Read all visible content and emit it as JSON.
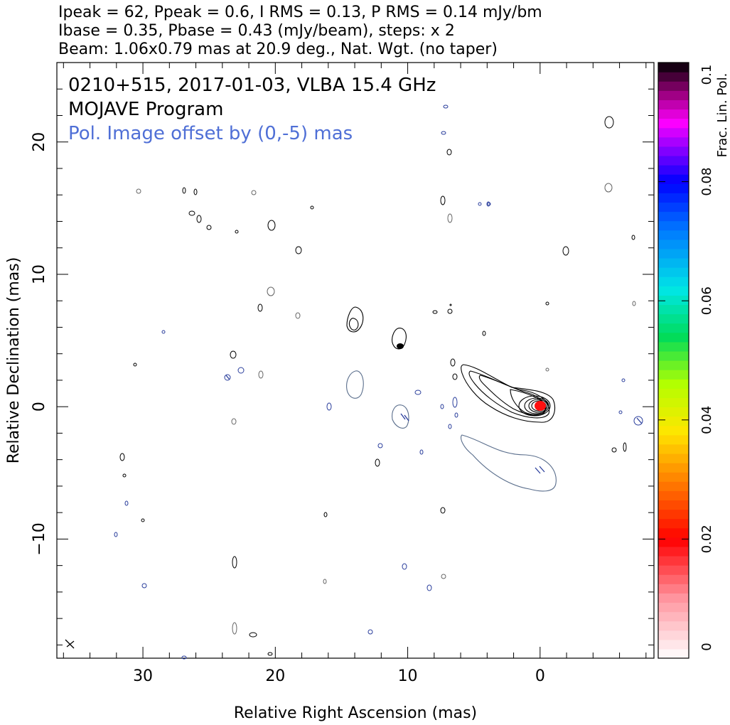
{
  "header": {
    "line1": "Ipeak = 62, Ppeak = 0.6, I RMS = 0.13, P RMS = 0.14 mJy/bm",
    "line2": "Ibase = 0.35, Pbase = 0.43 (mJy/beam), steps: x 2",
    "line3": "Beam: 1.06x0.79 mas at 20.9 deg., Nat. Wgt. (no taper)"
  },
  "annotations": {
    "source_line": "0210+515, 2017-01-03, VLBA 15.4 GHz",
    "program_line": "MOJAVE Program",
    "offset_line": "Pol. Image offset by (0,-5) mas"
  },
  "colors": {
    "total_intensity_contour": "#000000",
    "polarization_contour": "#5a6e8c",
    "annotation_blue": "#4f6fd6",
    "ticks": "#56b",
    "core_fill": "#ff1010"
  },
  "chart_data": {
    "type": "contour",
    "title": "0210+515, 2017-01-03, VLBA 15.4 GHz",
    "xlabel": "Relative Right Ascension (mas)",
    "ylabel": "Relative Declination (mas)",
    "xlim": [
      36.5,
      -8.6
    ],
    "ylim": [
      -19,
      26
    ],
    "xticks": [
      30,
      20,
      10,
      0
    ],
    "yticks": [
      -10,
      0,
      10,
      20
    ],
    "peak_I_mJy_per_beam": 62,
    "peak_P_mJy_per_beam": 0.6,
    "I_rms_mJy_per_beam": 0.13,
    "P_rms_mJy_per_beam": 0.14,
    "I_base_mJy_per_beam": 0.35,
    "P_base_mJy_per_beam": 0.43,
    "contour_step_factor": 2,
    "beam": {
      "major_mas": 1.06,
      "minor_mas": 0.79,
      "pa_deg": 20.9
    },
    "weighting": "Nat. Wgt. (no taper)",
    "pol_offset_mas": [
      0,
      -5
    ],
    "jet_component_positions_mas": [
      {
        "x": 0,
        "y": 0
      },
      {
        "x": 4,
        "y": 2.5
      },
      {
        "x": 10.7,
        "y": 4.5
      },
      {
        "x": 13.8,
        "y": 6.5
      }
    ],
    "colorbar": {
      "label": "Frac. Lin. Pol.",
      "min": 0,
      "max": 0.1,
      "ticks": [
        "0",
        "0.02",
        "0.04",
        "0.06",
        "0.08",
        "0.1"
      ]
    },
    "grid": false
  }
}
